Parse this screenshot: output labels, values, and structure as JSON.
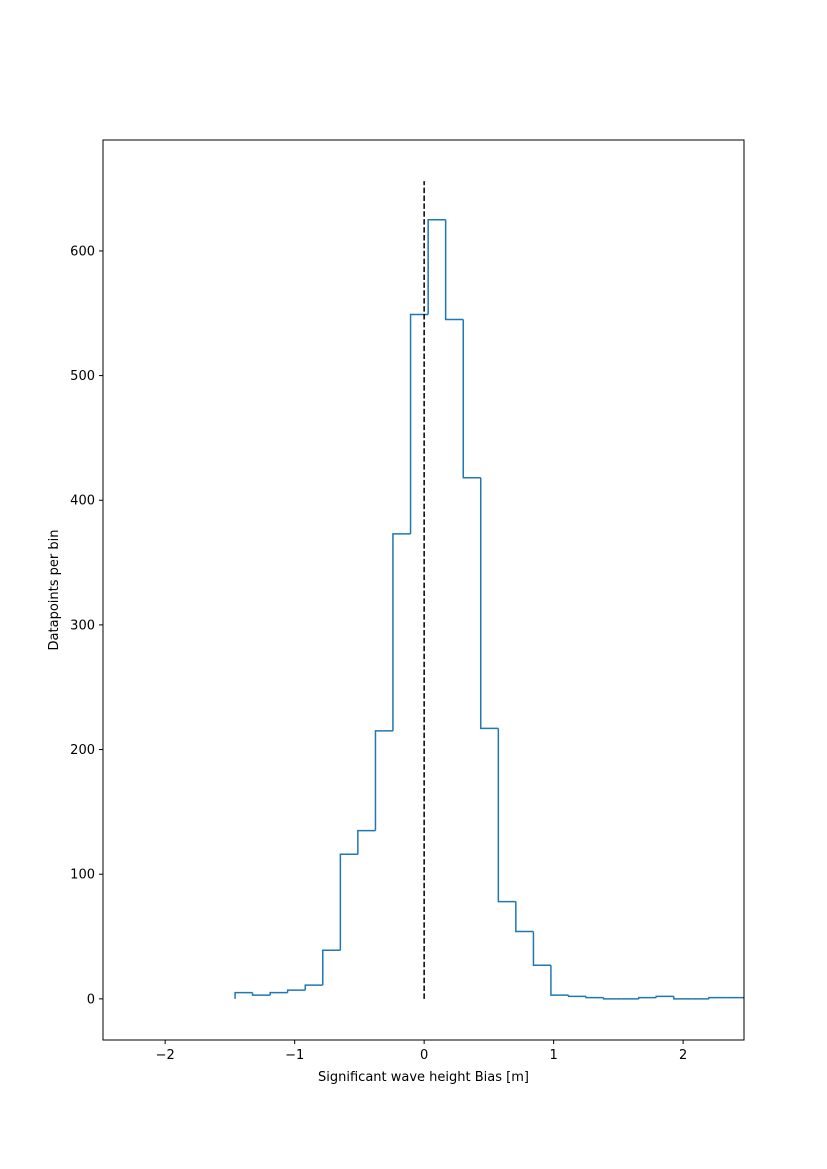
{
  "chart_data": {
    "type": "histogram",
    "histtype": "step",
    "xlabel": "Significant wave height Bias [m]",
    "ylabel": "Datapoints per bin",
    "color": "#1f77b4",
    "bins": [
      -1.46,
      -1.325,
      -1.189,
      -1.054,
      -0.918,
      -0.783,
      -0.647,
      -0.512,
      -0.376,
      -0.241,
      -0.105,
      0.031,
      0.166,
      0.302,
      0.437,
      0.573,
      0.708,
      0.844,
      0.979,
      1.115,
      1.25,
      1.386,
      1.521,
      1.657,
      1.792,
      1.928,
      2.063,
      2.199,
      2.334,
      2.47
    ],
    "counts": [
      5,
      3,
      5,
      7,
      11,
      39,
      116,
      135,
      215,
      373,
      549,
      625,
      545,
      418,
      217,
      78,
      54,
      27,
      3,
      2,
      1,
      0,
      0,
      1,
      2,
      0,
      0,
      1,
      1
    ],
    "vline": {
      "x": 0,
      "ymin": 0,
      "ymax": 656,
      "color": "#000000",
      "style": "dashed"
    },
    "xlim": [
      -2.48,
      2.47
    ],
    "ylim": [
      -33,
      689
    ],
    "xticks": [
      {
        "value": -2,
        "label": "−2"
      },
      {
        "value": -1,
        "label": "−1"
      },
      0,
      1,
      2
    ],
    "yticks": [
      0,
      100,
      200,
      300,
      400,
      500,
      600
    ],
    "grid": false
  }
}
